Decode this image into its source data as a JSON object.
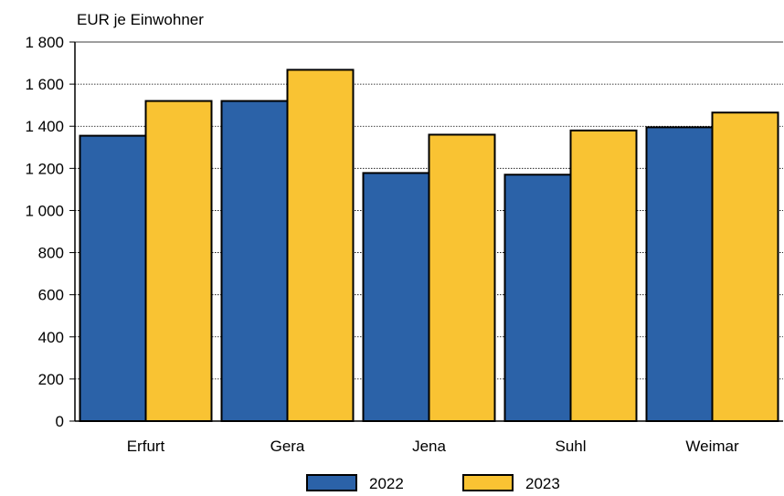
{
  "chart_data": {
    "type": "bar",
    "ylabel": "EUR je Einwohner",
    "categories": [
      "Erfurt",
      "Gera",
      "Jena",
      "Suhl",
      "Weimar"
    ],
    "series": [
      {
        "name": "2022",
        "color": "#2B62A8",
        "values": [
          1355,
          1520,
          1178,
          1170,
          1395
        ]
      },
      {
        "name": "2023",
        "color": "#F9C333",
        "values": [
          1520,
          1668,
          1360,
          1380,
          1465
        ]
      }
    ],
    "ylim": [
      0,
      1800
    ],
    "yticks": [
      0,
      200,
      400,
      600,
      800,
      1000,
      1200,
      1400,
      1600,
      1800
    ],
    "ytick_labels": [
      "0",
      "200",
      "400",
      "600",
      "800",
      "1 000",
      "1 200",
      "1 400",
      "1 600",
      "1 800"
    ],
    "grid": true,
    "legend": "bottom"
  }
}
